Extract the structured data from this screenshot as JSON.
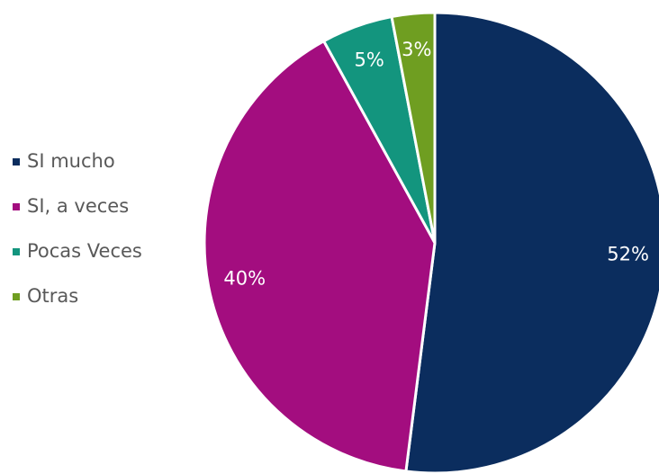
{
  "chart_data": {
    "type": "pie",
    "categories": [
      "SI mucho",
      "SI, a veces",
      "Pocas Veces",
      "Otras"
    ],
    "values": [
      52,
      40,
      5,
      3
    ],
    "value_labels": [
      "52%",
      "40%",
      "5%",
      "3%"
    ],
    "colors": [
      "#0b2d5e",
      "#a30d7f",
      "#13957e",
      "#6f9e21"
    ],
    "legend": "left"
  }
}
